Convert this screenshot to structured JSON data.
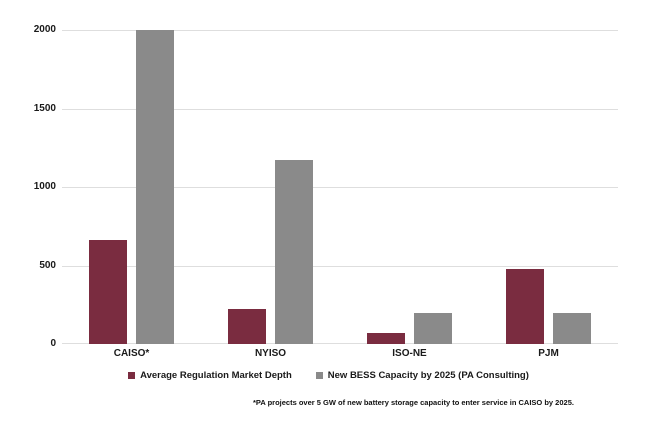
{
  "chart_data": {
    "type": "bar",
    "title": "",
    "xlabel": "",
    "ylabel": "",
    "categories": [
      "CAISO*",
      "NYISO",
      "ISO-NE",
      "PJM"
    ],
    "series": [
      {
        "name": "Average Regulation Market Depth",
        "color": "#7a2c40",
        "values": [
          660,
          225,
          70,
          475
        ]
      },
      {
        "name": "New BESS Capacity by 2025 (PA Consulting)",
        "color": "#8a8a8a",
        "values": [
          2000,
          1170,
          200,
          200
        ]
      }
    ],
    "ylim": [
      0,
      2000
    ],
    "yticks": [
      0,
      500,
      1000,
      1500,
      2000
    ],
    "grid": true,
    "legend_position": "bottom",
    "footnote": "*PA projects over 5 GW of new battery storage capacity to enter service in CAISO by 2025.",
    "gridline_color": "#dedede",
    "background_color": "#ffffff"
  }
}
